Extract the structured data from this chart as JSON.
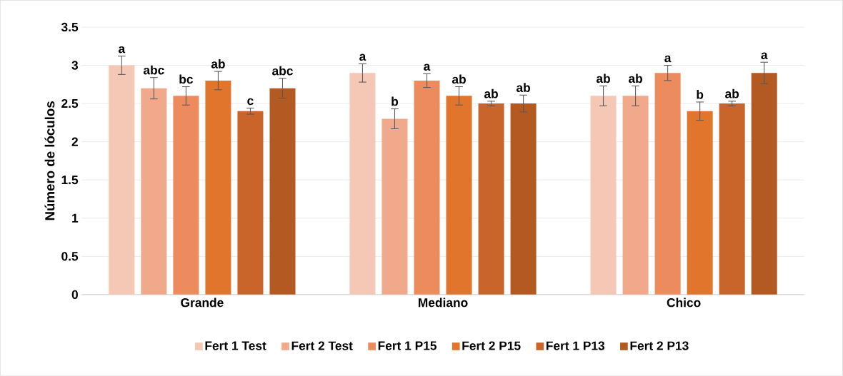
{
  "chart_data": {
    "type": "bar",
    "ylabel": "Número de lóculos",
    "categories": [
      "Grande",
      "Mediano",
      "Chico"
    ],
    "series": [
      {
        "name": "Fert 1 Test",
        "color": "#f5c8b6",
        "values": [
          3.0,
          2.9,
          2.6
        ],
        "errors": [
          0.12,
          0.12,
          0.13
        ],
        "value_labels": [
          "a",
          "a",
          "ab"
        ]
      },
      {
        "name": "Fert 2 Test",
        "color": "#f0a98a",
        "values": [
          2.7,
          2.3,
          2.6
        ],
        "errors": [
          0.14,
          0.13,
          0.13
        ],
        "value_labels": [
          "abc",
          "b",
          "ab"
        ]
      },
      {
        "name": "Fert 1 P15",
        "color": "#ec8c5e",
        "values": [
          2.6,
          2.8,
          2.9
        ],
        "errors": [
          0.12,
          0.09,
          0.1
        ],
        "value_labels": [
          "bc",
          "a",
          "a"
        ]
      },
      {
        "name": "Fert 2 P15",
        "color": "#e2752c",
        "values": [
          2.8,
          2.6,
          2.4
        ],
        "errors": [
          0.12,
          0.12,
          0.12
        ],
        "value_labels": [
          "ab",
          "ab",
          "b"
        ]
      },
      {
        "name": "Fert 1 P13",
        "color": "#c9652a",
        "values": [
          2.4,
          2.5,
          2.5
        ],
        "errors": [
          0.04,
          0.03,
          0.03
        ],
        "value_labels": [
          "c",
          "ab",
          "ab"
        ]
      },
      {
        "name": "Fert 2 P13",
        "color": "#b35a22",
        "values": [
          2.7,
          2.5,
          2.9
        ],
        "errors": [
          0.13,
          0.11,
          0.14
        ],
        "value_labels": [
          "abc",
          "ab",
          "a"
        ]
      }
    ],
    "ylim": [
      0,
      3.5
    ],
    "yticks": [
      0,
      0.5,
      1,
      1.5,
      2,
      2.5,
      3,
      3.5
    ],
    "grid": "y",
    "legend": "bottom"
  }
}
